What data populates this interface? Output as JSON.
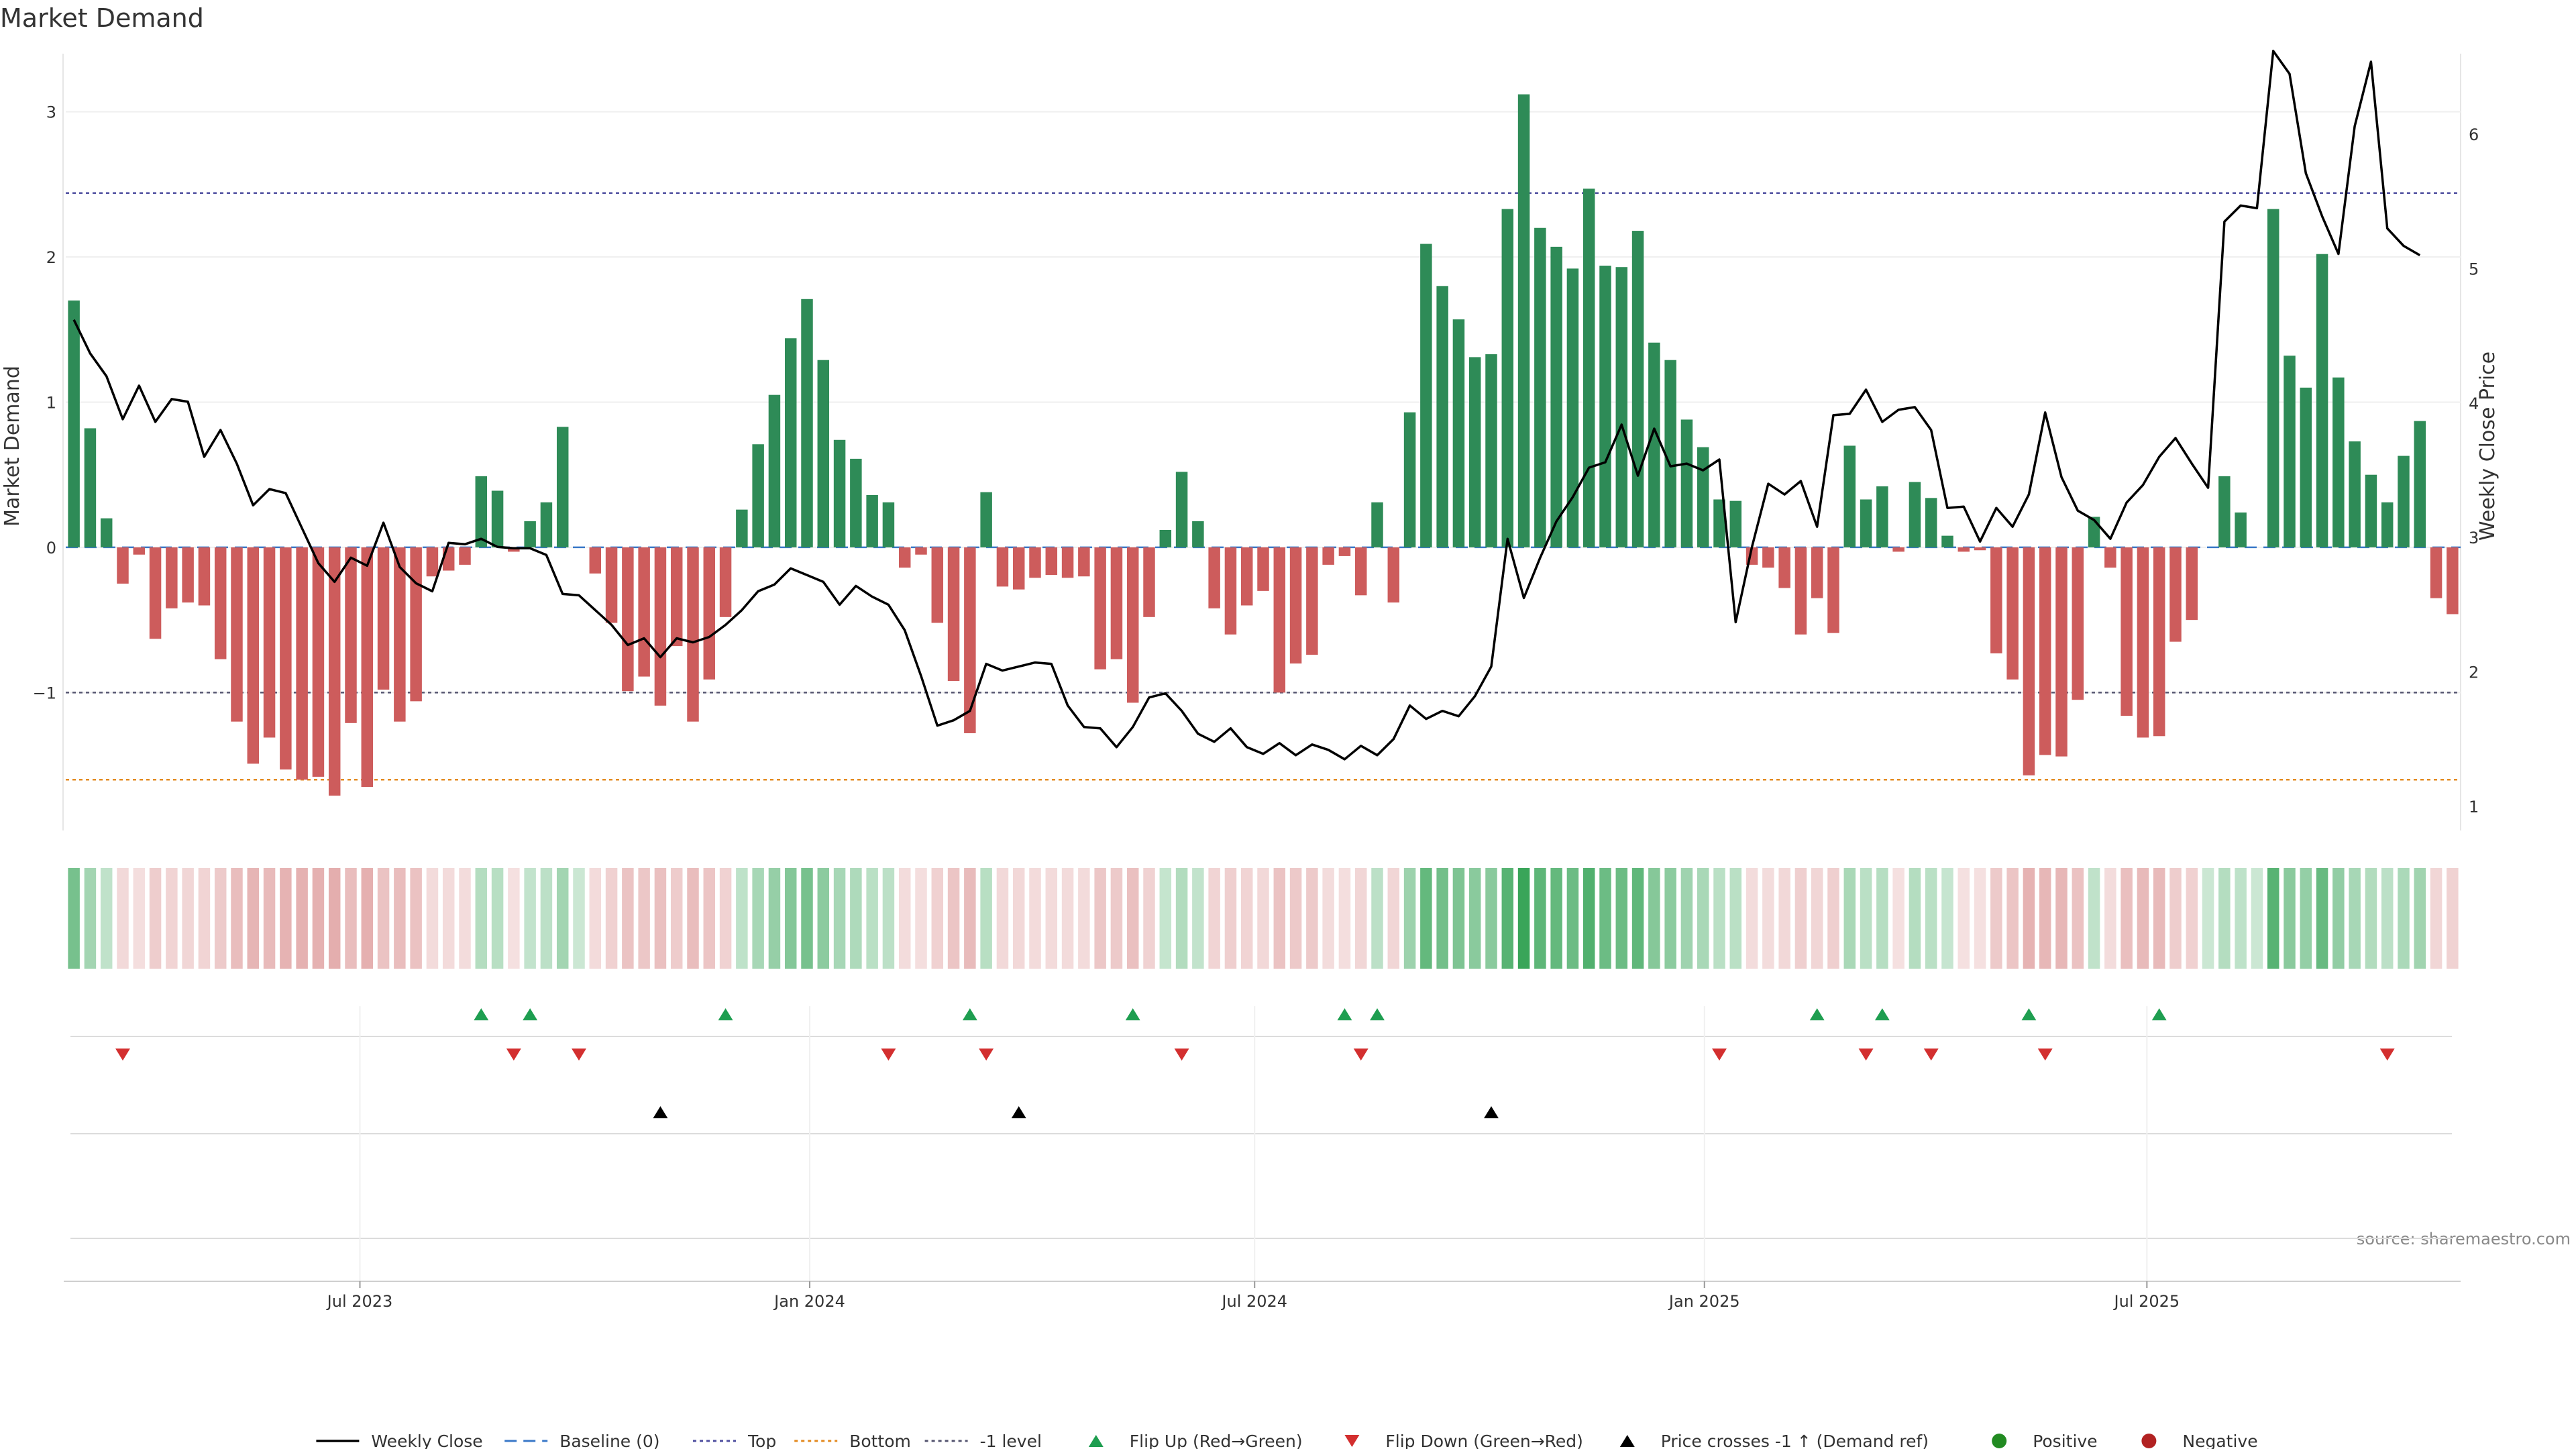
{
  "chart_data": {
    "type": "bar",
    "title": "Market Demand",
    "ylabel": "Market Demand",
    "y2label": "Weekly Close Price",
    "ylim": [
      -1.95,
      3.4
    ],
    "y2lim": [
      0.82,
      6.6
    ],
    "yticks": [
      -1,
      0,
      1,
      2,
      3
    ],
    "y2ticks": [
      1,
      2,
      3,
      4,
      5,
      6
    ],
    "x_start": "2023-03-06",
    "x_end": "2025-11-03",
    "xticks": [
      {
        "date": "2023-07-01",
        "label": "Jul 2023"
      },
      {
        "date": "2024-01-01",
        "label": "Jan 2024"
      },
      {
        "date": "2024-07-01",
        "label": "Jul 2024"
      },
      {
        "date": "2025-01-01",
        "label": "Jan 2025"
      },
      {
        "date": "2025-07-01",
        "label": "Jul 2025"
      }
    ],
    "reference_lines": [
      {
        "name": "Top",
        "value": 2.44
      },
      {
        "name": "-1 level",
        "value": -1.0
      },
      {
        "name": "Bottom",
        "value": -1.6
      },
      {
        "name": "Baseline (0)",
        "value": 0
      }
    ],
    "series": [
      {
        "name": "Market Demand",
        "type": "bar",
        "values": [
          1.7,
          0.82,
          0.2,
          -0.25,
          -0.05,
          -0.63,
          -0.42,
          -0.38,
          -0.4,
          -0.77,
          -1.2,
          -1.49,
          -1.31,
          -1.53,
          -1.6,
          -1.58,
          -1.71,
          -1.21,
          -1.65,
          -0.98,
          -1.2,
          -1.06,
          -0.2,
          -0.16,
          -0.12,
          0.49,
          0.39,
          -0.03,
          0.18,
          0.31,
          0.83,
          0,
          -0.18,
          -0.52,
          -0.99,
          -0.89,
          -1.09,
          -0.68,
          -1.2,
          -0.91,
          -0.48,
          0.26,
          0.71,
          1.05,
          1.44,
          1.71,
          1.29,
          0.74,
          0.61,
          0.36,
          0.31,
          -0.14,
          -0.05,
          -0.52,
          -0.92,
          -1.28,
          0.38,
          -0.27,
          -0.29,
          -0.21,
          -0.19,
          -0.21,
          -0.2,
          -0.84,
          -0.77,
          -1.07,
          -0.48,
          0.12,
          0.52,
          0.18,
          -0.42,
          -0.6,
          -0.4,
          -0.3,
          -1.0,
          -0.8,
          -0.74,
          -0.12,
          -0.06,
          -0.33,
          0.31,
          -0.38,
          0.93,
          2.09,
          1.8,
          1.57,
          1.31,
          1.33,
          2.33,
          3.12,
          2.2,
          2.07,
          1.92,
          2.47,
          1.94,
          1.93,
          2.18,
          1.41,
          1.29,
          0.88,
          0.69,
          0.33,
          0.32,
          -0.12,
          -0.14,
          -0.28,
          -0.6,
          -0.35,
          -0.59,
          0.7,
          0.33,
          0.42,
          -0.03,
          0.45,
          0.34,
          0.08,
          -0.03,
          -0.02,
          -0.73,
          -0.91,
          -1.57,
          -1.43,
          -1.44,
          -1.05,
          0.21,
          -0.14,
          -1.16,
          -1.31,
          -1.3,
          -0.65,
          -0.5,
          0,
          0.49,
          0.24,
          0,
          2.33,
          1.32,
          1.1,
          2.02,
          1.17,
          0.73,
          0.5,
          0.31,
          0.63,
          0.87,
          -0.35,
          -0.46
        ]
      },
      {
        "name": "Weekly Close",
        "type": "line",
        "values": [
          4.62,
          4.37,
          4.2,
          3.88,
          4.13,
          3.86,
          4.03,
          4.01,
          3.6,
          3.8,
          3.55,
          3.24,
          3.36,
          3.33,
          3.07,
          2.81,
          2.67,
          2.85,
          2.79,
          3.11,
          2.78,
          2.66,
          2.6,
          2.96,
          2.95,
          2.99,
          2.93,
          2.92,
          2.92,
          2.87,
          2.58,
          2.57,
          2.46,
          2.35,
          2.2,
          2.25,
          2.11,
          2.25,
          2.22,
          2.26,
          2.35,
          2.46,
          2.6,
          2.65,
          2.77,
          2.72,
          2.67,
          2.5,
          2.64,
          2.56,
          2.5,
          2.31,
          1.97,
          1.6,
          1.64,
          1.71,
          2.06,
          2.01,
          2.04,
          2.07,
          2.06,
          1.75,
          1.59,
          1.58,
          1.44,
          1.59,
          1.81,
          1.84,
          1.71,
          1.54,
          1.48,
          1.58,
          1.44,
          1.39,
          1.47,
          1.38,
          1.46,
          1.42,
          1.35,
          1.45,
          1.38,
          1.5,
          1.75,
          1.65,
          1.71,
          1.67,
          1.82,
          2.04,
          2.99,
          2.55,
          2.85,
          3.12,
          3.3,
          3.52,
          3.56,
          3.84,
          3.46,
          3.81,
          3.53,
          3.55,
          3.5,
          3.58,
          2.37,
          2.93,
          3.4,
          3.32,
          3.42,
          3.08,
          3.91,
          3.92,
          4.1,
          3.86,
          3.95,
          3.97,
          3.8,
          3.22,
          3.23,
          2.97,
          3.22,
          3.08,
          3.32,
          3.93,
          3.45,
          3.2,
          3.13,
          2.99,
          3.26,
          3.39,
          3.6,
          3.74,
          3.55,
          3.37,
          5.35,
          5.47,
          5.45,
          6.62,
          6.45,
          5.71,
          5.39,
          5.11,
          6.06,
          6.54,
          5.3,
          5.17,
          5.1
        ]
      }
    ],
    "flip_up_weeks": [
      25,
      28,
      40,
      55,
      65,
      78,
      80,
      107,
      111,
      120,
      128
    ],
    "flip_down_weeks": [
      3,
      27,
      31,
      50,
      56,
      68,
      79,
      101,
      110,
      114,
      121,
      142
    ],
    "price_cross_weeks": [
      36,
      58,
      87
    ],
    "legend": {
      "position": "bottom-center",
      "items": [
        {
          "label": "Weekly Close"
        },
        {
          "label": "Baseline (0)"
        },
        {
          "label": "Top"
        },
        {
          "label": "Bottom"
        },
        {
          "label": "-1 level"
        },
        {
          "label": "Flip Up (Red→Green)"
        },
        {
          "label": "Flip Down (Green→Red)"
        },
        {
          "label": "Price crosses -1 ↑ (Demand ref)"
        },
        {
          "label": "Positive"
        },
        {
          "label": "Negative"
        }
      ]
    },
    "source": "source: sharemaestro.com"
  },
  "colors": {
    "positive": "#2e8b57",
    "negative": "#cd5c5c",
    "flip_up": "#1e9e50",
    "flip_down": "#d32f2f",
    "cross": "#000000",
    "top": "#5050a0",
    "bottom": "#e38a1f",
    "minus1": "#555570",
    "baseline": "#3a78c8",
    "positive_dot": "#228b22",
    "negative_dot": "#b22222"
  }
}
